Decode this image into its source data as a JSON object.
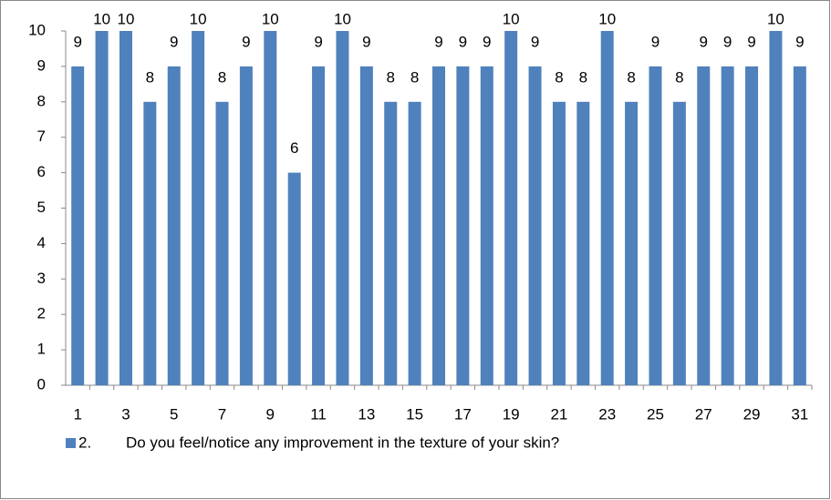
{
  "chart_data": {
    "type": "bar",
    "categories": [
      "1",
      null,
      "3",
      null,
      "5",
      null,
      "7",
      null,
      "9",
      null,
      "11",
      null,
      "13",
      null,
      "15",
      null,
      "17",
      null,
      "19",
      null,
      "21",
      null,
      "23",
      null,
      "25",
      null,
      "27",
      null,
      "29",
      null,
      "31"
    ],
    "series": [
      {
        "name": "2.        Do you feel/notice any improvement in the texture of your skin?",
        "color": "#4f81bd",
        "values": [
          9,
          10,
          10,
          8,
          9,
          10,
          8,
          9,
          10,
          6,
          9,
          10,
          9,
          8,
          8,
          9,
          9,
          9,
          10,
          9,
          8,
          8,
          10,
          8,
          9,
          8,
          9,
          9,
          9,
          10,
          9
        ]
      }
    ],
    "ylim": [
      0,
      10
    ],
    "yticks": [
      0,
      1,
      2,
      3,
      4,
      5,
      6,
      7,
      8,
      9,
      10
    ],
    "legend": "bottom-left"
  }
}
